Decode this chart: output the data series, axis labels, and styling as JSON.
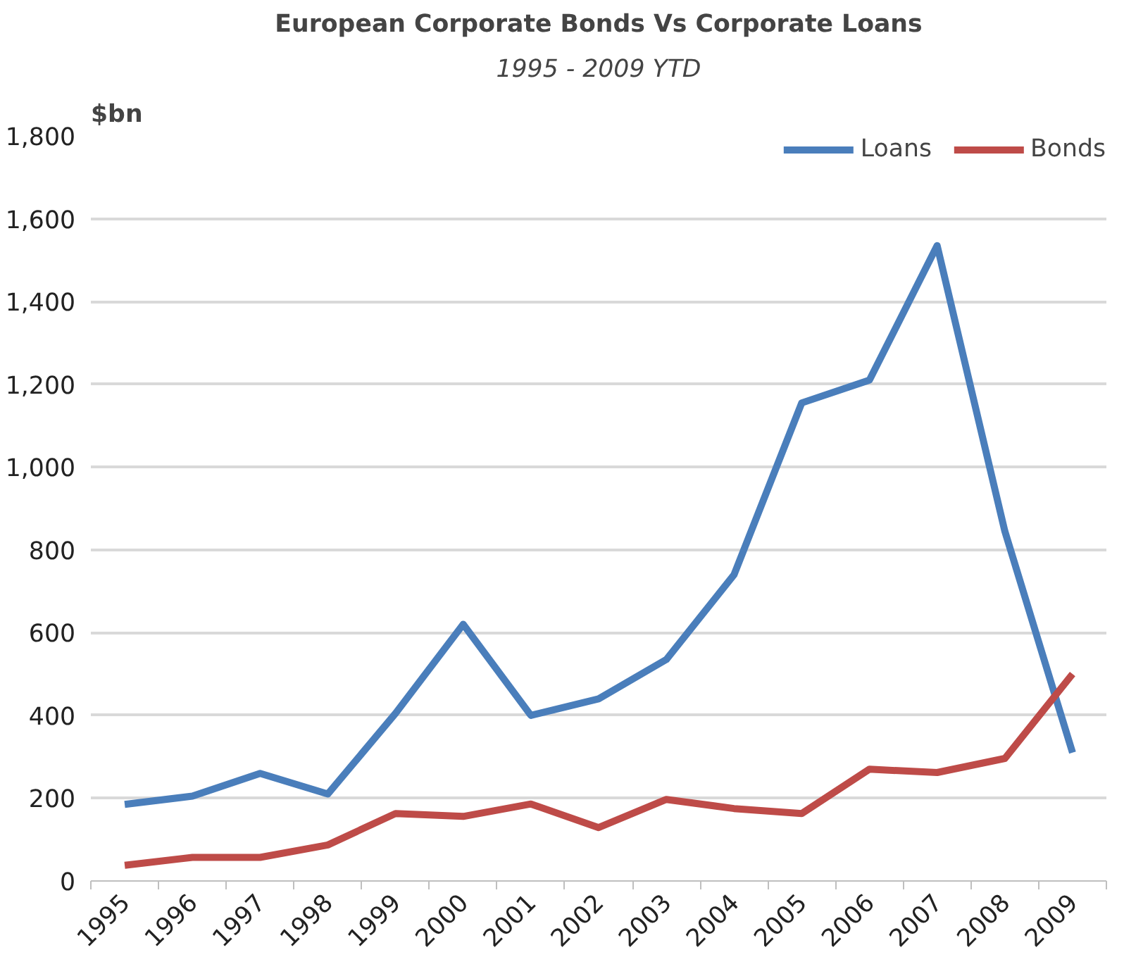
{
  "chart_data": {
    "type": "line",
    "title": "European Corporate Bonds Vs Corporate Loans",
    "subtitle": "1995 - 2009 YTD",
    "ylabel": "$bn",
    "categories": [
      "1995",
      "1996",
      "1997",
      "1998",
      "1999",
      "2000",
      "2001",
      "2002",
      "2003",
      "2004",
      "2005",
      "2006",
      "2007",
      "2008",
      "2009"
    ],
    "series": [
      {
        "name": "Loans",
        "color": "#4a7ebb",
        "values": [
          185,
          205,
          260,
          210,
          405,
          620,
          400,
          440,
          535,
          740,
          1155,
          1210,
          1535,
          845,
          310
        ]
      },
      {
        "name": "Bonds",
        "color": "#be4b48",
        "values": [
          38,
          57,
          57,
          87,
          163,
          156,
          186,
          129,
          197,
          175,
          163,
          270,
          262,
          296,
          500
        ]
      }
    ],
    "ylim": [
      0,
      1800
    ],
    "yticks": [
      {
        "value": 0,
        "label": "0"
      },
      {
        "value": 200,
        "label": "200"
      },
      {
        "value": 400,
        "label": "400"
      },
      {
        "value": 600,
        "label": "600"
      },
      {
        "value": 800,
        "label": "800"
      },
      {
        "value": 1000,
        "label": "1,000"
      },
      {
        "value": 1200,
        "label": "1,200"
      },
      {
        "value": 1400,
        "label": "1,400"
      },
      {
        "value": 1600,
        "label": "1,600"
      },
      {
        "value": 1800,
        "label": "1,800"
      }
    ],
    "grid": "y",
    "legend": "top right",
    "line_style": "solid"
  }
}
